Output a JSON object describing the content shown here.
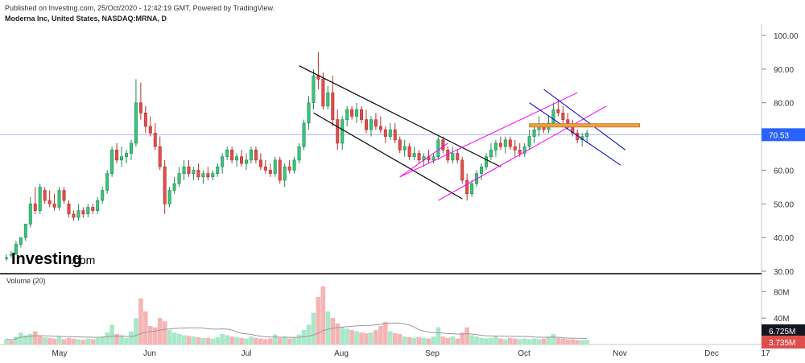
{
  "header": {
    "published": "Published on Investing.com, 25/Oct/2020 - 12:42:19 GMT, Powered by TradingView.",
    "symbol": "Moderna Inc, United States, NASDAQ:MRNA, D"
  },
  "logo": {
    "brand": "Investing",
    "suffix": ".com"
  },
  "colors": {
    "up": "#3cc47c",
    "down": "#e04d4d",
    "vol_up": "#a9e8c8",
    "vol_down": "#f5b5b5",
    "channel_black": "#000000",
    "channel_magenta": "#ff00ff",
    "channel_blue": "#0000d0",
    "resistance": "#f0a040",
    "price_line": "#a8b8e8",
    "last_price_bg": "#2962ff",
    "vol_ma": "#999999"
  },
  "chart_data": {
    "type": "candlestick",
    "title": "Moderna Inc, United States, NASDAQ:MRNA, D",
    "x_axis_labels": [
      "May",
      "Jun",
      "Jul",
      "Aug",
      "Sep",
      "Oct",
      "Nov",
      "Dec",
      "17"
    ],
    "y_ticks": [
      30,
      40,
      50,
      60,
      70,
      80,
      90,
      100
    ],
    "y_tick_labels": [
      "30.00",
      "40.00",
      "50.00",
      "60.00",
      "70.00",
      "80.00",
      "90.00",
      "100.00"
    ],
    "ylim": [
      30,
      100
    ],
    "last_price": 70.53,
    "last_price_label": "70.53",
    "candles": [
      [
        34,
        35,
        33,
        34
      ],
      [
        35,
        36,
        34,
        35
      ],
      [
        35,
        39,
        35,
        38
      ],
      [
        38,
        40,
        37,
        40
      ],
      [
        40,
        44,
        39,
        44
      ],
      [
        44,
        52,
        43,
        50
      ],
      [
        50,
        55,
        47,
        48
      ],
      [
        48,
        56,
        47,
        55
      ],
      [
        54,
        55,
        50,
        51
      ],
      [
        51,
        54,
        49,
        50
      ],
      [
        50,
        53,
        48,
        49
      ],
      [
        49,
        55,
        48,
        54
      ],
      [
        54,
        55,
        50,
        51
      ],
      [
        50,
        51,
        46,
        47
      ],
      [
        47,
        48,
        45,
        46
      ],
      [
        46,
        50,
        45,
        48
      ],
      [
        48,
        49,
        46,
        47
      ],
      [
        47,
        50,
        46,
        49
      ],
      [
        49,
        50,
        47,
        48
      ],
      [
        48,
        52,
        47,
        51
      ],
      [
        51,
        55,
        50,
        54
      ],
      [
        54,
        60,
        53,
        59
      ],
      [
        59,
        67,
        58,
        66
      ],
      [
        66,
        68,
        62,
        63
      ],
      [
        63,
        67,
        61,
        64
      ],
      [
        64,
        66,
        62,
        65
      ],
      [
        65,
        69,
        63,
        68
      ],
      [
        68,
        87,
        67,
        80
      ],
      [
        80,
        86,
        75,
        77
      ],
      [
        77,
        79,
        71,
        73
      ],
      [
        73,
        76,
        70,
        71
      ],
      [
        71,
        74,
        66,
        67
      ],
      [
        67,
        70,
        60,
        61
      ],
      [
        61,
        63,
        47,
        50
      ],
      [
        50,
        55,
        49,
        54
      ],
      [
        54,
        58,
        53,
        56
      ],
      [
        56,
        61,
        55,
        59
      ],
      [
        59,
        63,
        57,
        61
      ],
      [
        61,
        63,
        58,
        59
      ],
      [
        59,
        61,
        57,
        60
      ],
      [
        60,
        62,
        57,
        58
      ],
      [
        58,
        60,
        56,
        59
      ],
      [
        59,
        61,
        57,
        58
      ],
      [
        58,
        60,
        57,
        59
      ],
      [
        59,
        62,
        58,
        61
      ],
      [
        61,
        65,
        59,
        64
      ],
      [
        64,
        67,
        63,
        66
      ],
      [
        66,
        67,
        62,
        63
      ],
      [
        63,
        65,
        61,
        64
      ],
      [
        64,
        66,
        61,
        62
      ],
      [
        62,
        65,
        60,
        63
      ],
      [
        63,
        67,
        62,
        66
      ],
      [
        66,
        67,
        62,
        63
      ],
      [
        63,
        65,
        60,
        61
      ],
      [
        61,
        63,
        59,
        60
      ],
      [
        60,
        62,
        58,
        59
      ],
      [
        59,
        64,
        58,
        63
      ],
      [
        63,
        64,
        56,
        57
      ],
      [
        57,
        62,
        55,
        61
      ],
      [
        61,
        63,
        59,
        60
      ],
      [
        60,
        64,
        59,
        63
      ],
      [
        63,
        68,
        62,
        67
      ],
      [
        67,
        75,
        66,
        74
      ],
      [
        74,
        82,
        72,
        80
      ],
      [
        80,
        90,
        78,
        88
      ],
      [
        88,
        95,
        84,
        87
      ],
      [
        87,
        89,
        78,
        79
      ],
      [
        79,
        85,
        78,
        83
      ],
      [
        83,
        88,
        73,
        75
      ],
      [
        75,
        78,
        66,
        68
      ],
      [
        68,
        76,
        66,
        75
      ],
      [
        75,
        79,
        73,
        78
      ],
      [
        78,
        79,
        75,
        76
      ],
      [
        76,
        80,
        74,
        78
      ],
      [
        78,
        79,
        74,
        75
      ],
      [
        75,
        78,
        71,
        72
      ],
      [
        72,
        76,
        70,
        75
      ],
      [
        75,
        77,
        72,
        73
      ],
      [
        73,
        76,
        71,
        72
      ],
      [
        72,
        73,
        68,
        70
      ],
      [
        70,
        74,
        69,
        72
      ],
      [
        72,
        74,
        68,
        69
      ],
      [
        69,
        70,
        65,
        66
      ],
      [
        66,
        69,
        64,
        67
      ],
      [
        67,
        68,
        63,
        64
      ],
      [
        64,
        67,
        63,
        65
      ],
      [
        65,
        66,
        62,
        63
      ],
      [
        63,
        65,
        61,
        64
      ],
      [
        64,
        66,
        62,
        63
      ],
      [
        63,
        65,
        62,
        64
      ],
      [
        64,
        70,
        63,
        69
      ],
      [
        69,
        70,
        65,
        66
      ],
      [
        66,
        67,
        62,
        63
      ],
      [
        63,
        67,
        62,
        65
      ],
      [
        65,
        66,
        62,
        63
      ],
      [
        63,
        64,
        56,
        57
      ],
      [
        57,
        59,
        51,
        53
      ],
      [
        53,
        57,
        52,
        56
      ],
      [
        56,
        60,
        55,
        59
      ],
      [
        59,
        62,
        57,
        61
      ],
      [
        61,
        65,
        60,
        64
      ],
      [
        64,
        68,
        63,
        66
      ],
      [
        66,
        69,
        64,
        68
      ],
      [
        68,
        70,
        66,
        67
      ],
      [
        67,
        70,
        65,
        69
      ],
      [
        69,
        70,
        66,
        67
      ],
      [
        67,
        69,
        64,
        66
      ],
      [
        66,
        68,
        64,
        65
      ],
      [
        65,
        68,
        64,
        67
      ],
      [
        67,
        72,
        66,
        70
      ],
      [
        70,
        73,
        68,
        72
      ],
      [
        72,
        76,
        70,
        73
      ],
      [
        73,
        74,
        71,
        72
      ],
      [
        72,
        76,
        71,
        74
      ],
      [
        74,
        80,
        73,
        78
      ],
      [
        78,
        81,
        76,
        77
      ],
      [
        77,
        79,
        74,
        75
      ],
      [
        75,
        77,
        72,
        73
      ],
      [
        73,
        75,
        70,
        71
      ],
      [
        71,
        72,
        68,
        69
      ],
      [
        69,
        71,
        67,
        70
      ],
      [
        70,
        72,
        68,
        71
      ]
    ],
    "volume_label": "Volume (20)",
    "volume_ticks": [
      40,
      80
    ],
    "volume_tick_labels": [
      "40M",
      "80M"
    ],
    "volume_ylim": [
      0,
      95
    ],
    "volume_last_label": "6.725M",
    "volume_ma_label": "3.735M",
    "volume": [
      8,
      6,
      12,
      18,
      14,
      16,
      20,
      13,
      11,
      10,
      9,
      12,
      8,
      10,
      9,
      8,
      7,
      9,
      8,
      10,
      12,
      18,
      30,
      16,
      14,
      10,
      20,
      40,
      70,
      50,
      28,
      26,
      40,
      35,
      22,
      18,
      16,
      14,
      13,
      12,
      11,
      10,
      10,
      9,
      11,
      16,
      14,
      12,
      11,
      10,
      9,
      12,
      10,
      9,
      8,
      9,
      15,
      10,
      12,
      9,
      10,
      15,
      22,
      30,
      48,
      72,
      88,
      50,
      40,
      32,
      26,
      24,
      22,
      20,
      18,
      17,
      18,
      22,
      28,
      34,
      20,
      17,
      16,
      12,
      11,
      10,
      11,
      10,
      9,
      12,
      26,
      12,
      10,
      12,
      9,
      18,
      26,
      14,
      12,
      10,
      9,
      10,
      12,
      9,
      8,
      10,
      9,
      8,
      9,
      8,
      9,
      8,
      9,
      12,
      16,
      10,
      9,
      8,
      8,
      7,
      7,
      7
    ],
    "volume_down": [
      0,
      1,
      0,
      0,
      0,
      0,
      1,
      1,
      0,
      1,
      1,
      0,
      1,
      1,
      1,
      0,
      1,
      0,
      1,
      0,
      0,
      0,
      0,
      1,
      0,
      0,
      0,
      0,
      1,
      1,
      1,
      1,
      1,
      1,
      0,
      0,
      0,
      0,
      1,
      0,
      1,
      0,
      1,
      0,
      0,
      0,
      0,
      1,
      0,
      1,
      0,
      0,
      1,
      1,
      1,
      1,
      0,
      1,
      0,
      1,
      0,
      0,
      0,
      0,
      0,
      1,
      1,
      0,
      1,
      1,
      0,
      0,
      1,
      0,
      1,
      1,
      0,
      1,
      1,
      1,
      0,
      1,
      1,
      0,
      1,
      0,
      1,
      0,
      1,
      0,
      0,
      1,
      1,
      0,
      1,
      1,
      1,
      0,
      0,
      0,
      0,
      0,
      0,
      1,
      0,
      1,
      1,
      0,
      0,
      0,
      0,
      0,
      1,
      0,
      0,
      1,
      1,
      1,
      1,
      1,
      0,
      0
    ]
  }
}
